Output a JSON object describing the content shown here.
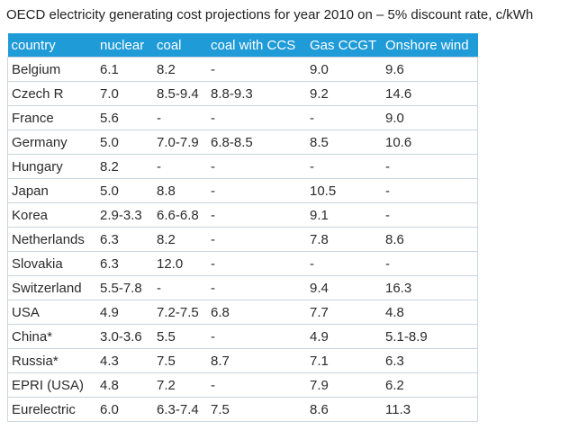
{
  "title": "OECD electricity generating cost projections for year 2010 on – 5% discount rate, c/kWh",
  "header": {
    "accent_color": "#1f9bd8",
    "columns": [
      "country",
      "nuclear",
      "coal",
      "coal with CCS",
      "Gas CCGT",
      "Onshore wind"
    ]
  },
  "rows": [
    [
      "Belgium",
      "6.1",
      "8.2",
      "-",
      "9.0",
      "9.6"
    ],
    [
      "Czech R",
      "7.0",
      "8.5-9.4",
      "8.8-9.3",
      "9.2",
      "14.6"
    ],
    [
      "France",
      "5.6",
      "-",
      "-",
      "-",
      "9.0"
    ],
    [
      "Germany",
      "5.0",
      "7.0-7.9",
      "6.8-8.5",
      "8.5",
      "10.6"
    ],
    [
      "Hungary",
      "8.2",
      "-",
      "-",
      "-",
      "-"
    ],
    [
      "Japan",
      "5.0",
      "8.8",
      "-",
      "10.5",
      "-"
    ],
    [
      "Korea",
      "2.9-3.3",
      "6.6-6.8",
      "-",
      "9.1",
      "-"
    ],
    [
      "Netherlands",
      "6.3",
      "8.2",
      "-",
      "7.8",
      "8.6"
    ],
    [
      "Slovakia",
      "6.3",
      "12.0",
      "-",
      "-",
      "-"
    ],
    [
      "Switzerland",
      "5.5-7.8",
      "-",
      "-",
      "9.4",
      "16.3"
    ],
    [
      "USA",
      "4.9",
      "7.2-7.5",
      "6.8",
      "7.7",
      "4.8"
    ],
    [
      "China*",
      "3.0-3.6",
      "5.5",
      "-",
      "4.9",
      "5.1-8.9"
    ],
    [
      "Russia*",
      "4.3",
      "7.5",
      "8.7",
      "7.1",
      "6.3"
    ],
    [
      "EPRI (USA)",
      "4.8",
      "7.2",
      "-",
      "7.9",
      "6.2"
    ],
    [
      "Eurelectric",
      "6.0",
      "6.3-7.4",
      "7.5",
      "8.6",
      "11.3"
    ]
  ]
}
